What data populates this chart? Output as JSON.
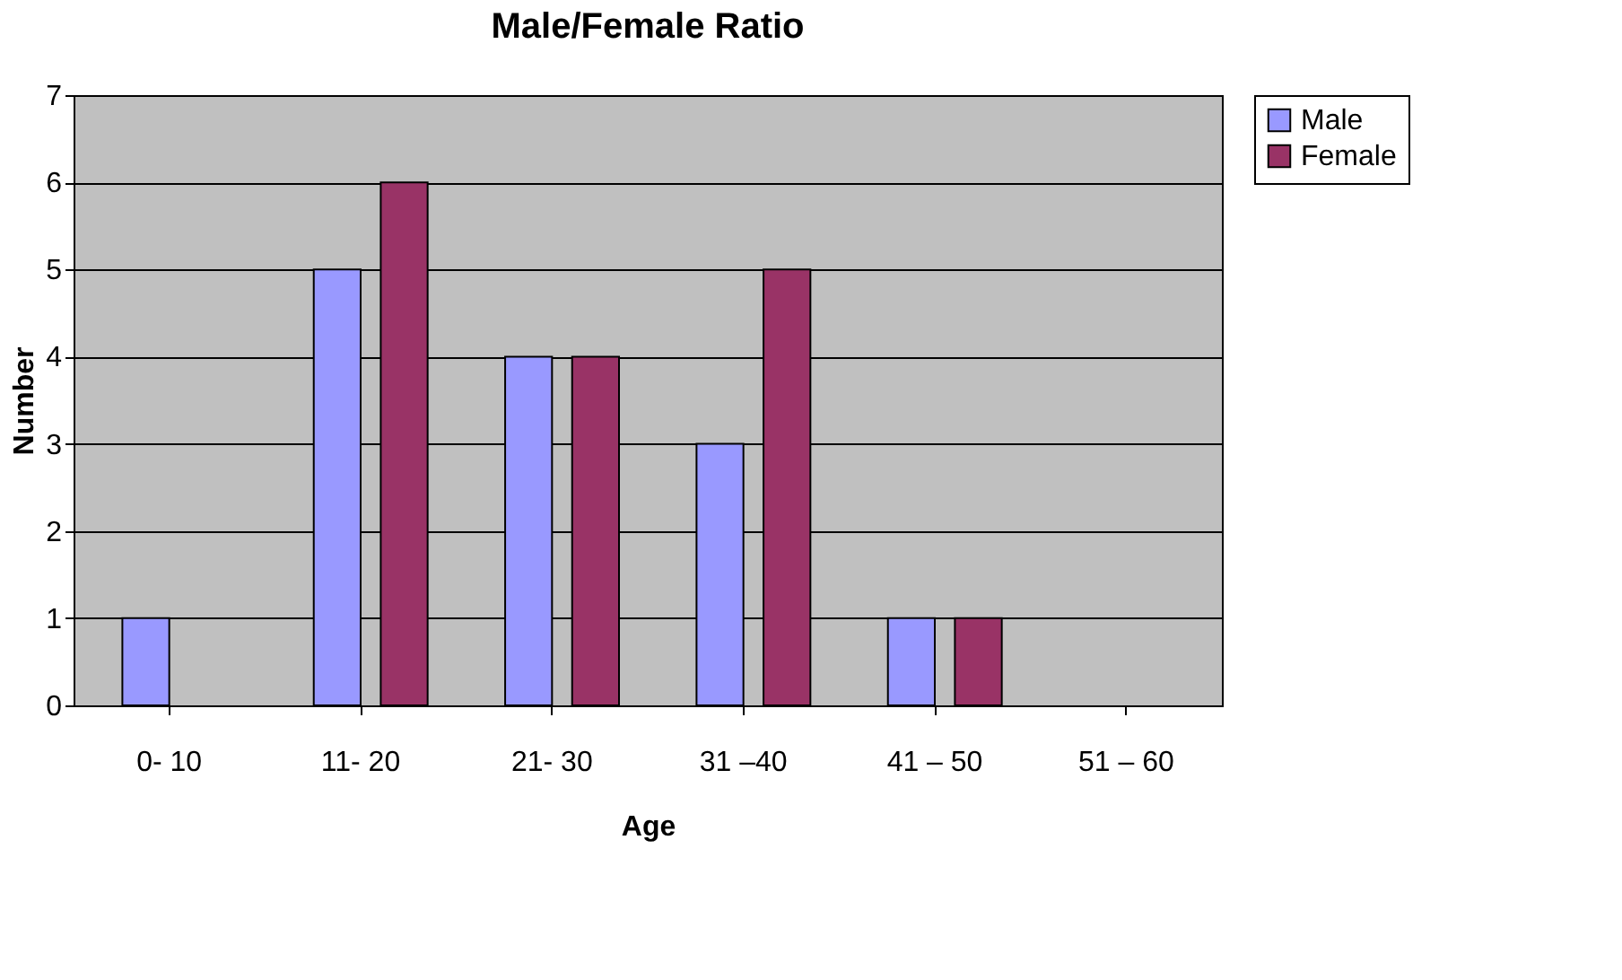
{
  "chart_data": {
    "type": "bar",
    "title": "Male/Female Ratio",
    "xlabel": "Age",
    "ylabel": "Number",
    "categories": [
      "0- 10",
      "11- 20",
      "21- 30",
      "31 –40",
      "41 – 50",
      "51 – 60"
    ],
    "series": [
      {
        "name": "Male",
        "color": "#9999ff",
        "values": [
          1,
          5,
          4,
          3,
          1,
          null
        ]
      },
      {
        "name": "Female",
        "color": "#993366",
        "values": [
          null,
          6,
          4,
          5,
          1,
          null
        ]
      }
    ],
    "ylim": [
      0,
      7
    ],
    "yticks": [
      0,
      1,
      2,
      3,
      4,
      5,
      6,
      7
    ],
    "grid": "y",
    "legend": "right"
  }
}
